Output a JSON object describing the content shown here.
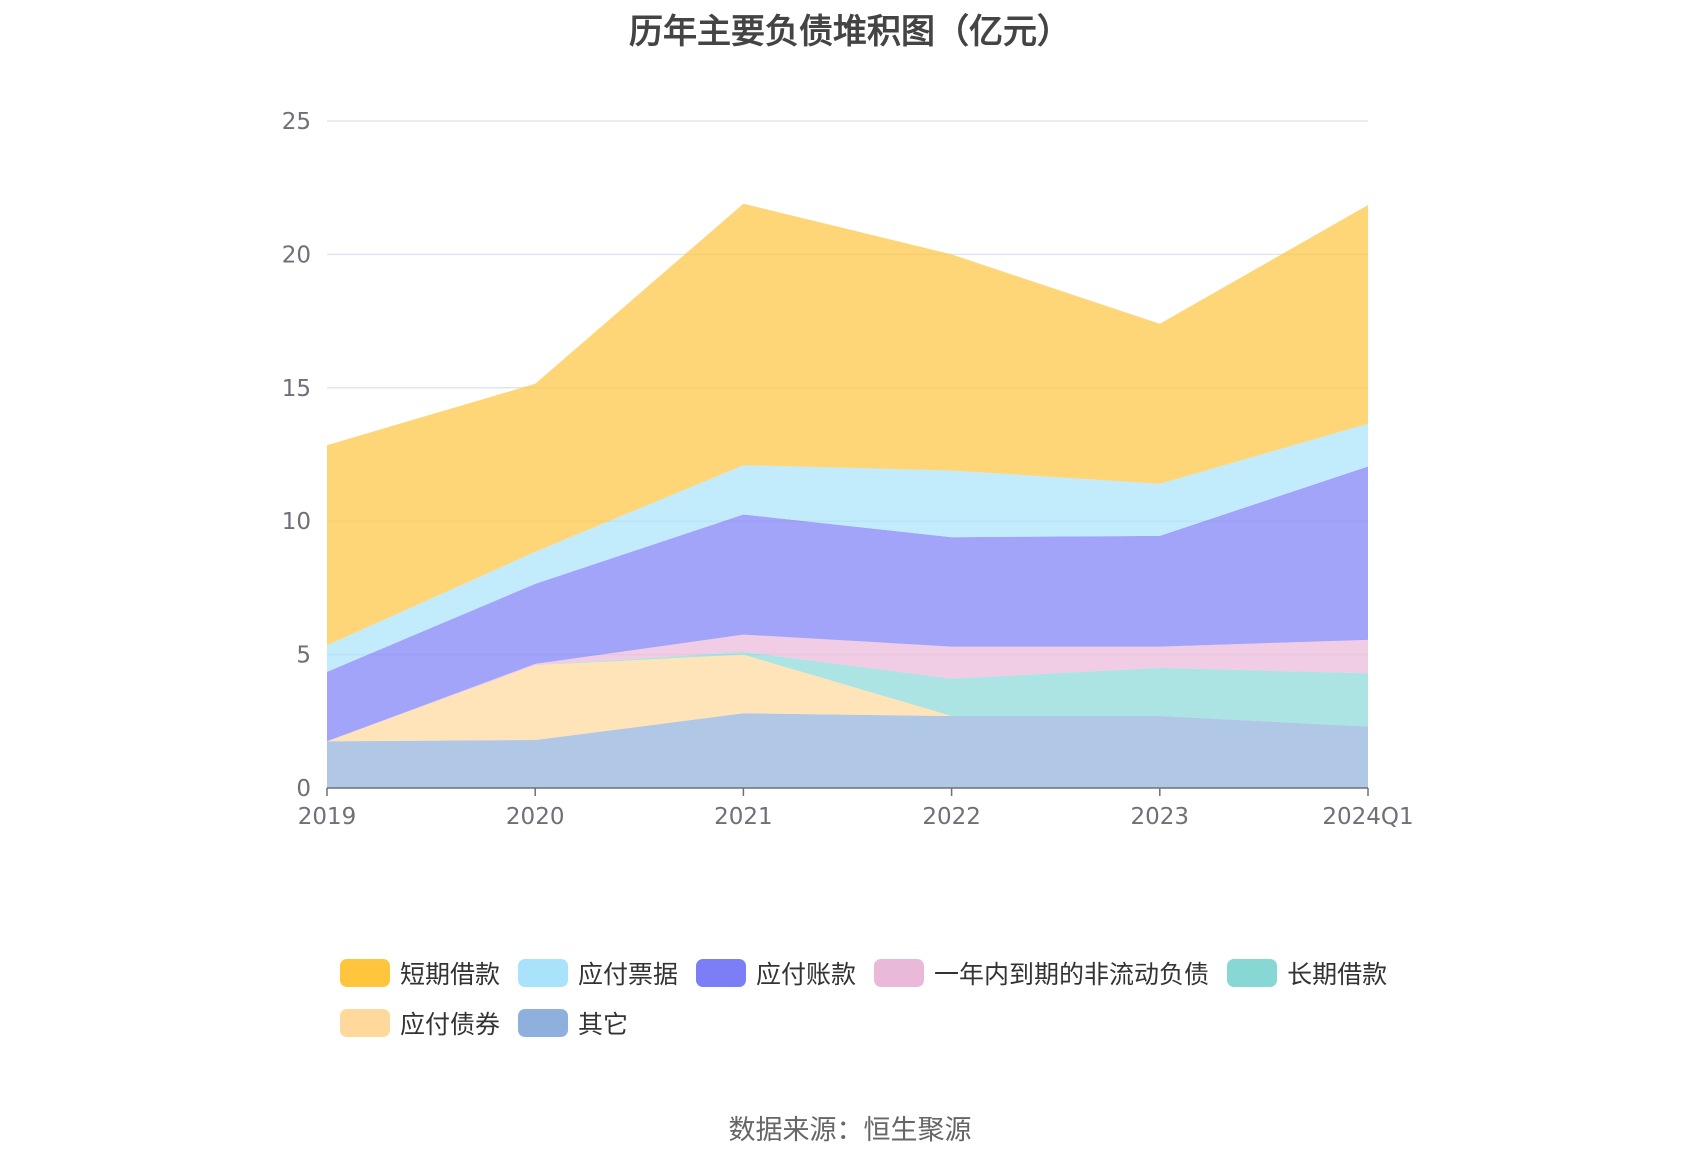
{
  "source": "数据来源：恒生聚源",
  "chart_data": {
    "type": "area",
    "stacked": true,
    "title": "历年主要负债堆积图（亿元）",
    "xlabel": "",
    "ylabel": "",
    "categories": [
      "2019",
      "2020",
      "2021",
      "2022",
      "2023",
      "2024Q1"
    ],
    "ylim": [
      0,
      25
    ],
    "yticks": [
      "0",
      "5",
      "10",
      "15",
      "20",
      "25"
    ],
    "grid": true,
    "legend_position": "bottom",
    "series": [
      {
        "name": "其它",
        "color": "#8fb0dc",
        "values": [
          1.75,
          1.8,
          2.8,
          2.7,
          2.7,
          2.3
        ]
      },
      {
        "name": "应付债券",
        "color": "#ffd89b",
        "values": [
          0,
          2.8,
          2.2,
          0,
          0,
          0
        ]
      },
      {
        "name": "长期借款",
        "color": "#87d8d5",
        "values": [
          0,
          0,
          0.1,
          1.4,
          1.8,
          2.0
        ]
      },
      {
        "name": "一年内到期的非流动负债",
        "color": "#eab8d8",
        "values": [
          0,
          0.05,
          0.65,
          1.2,
          0.8,
          1.25
        ]
      },
      {
        "name": "应付账款",
        "color": "#7b7ef6",
        "values": [
          2.6,
          3.0,
          4.5,
          4.1,
          4.15,
          6.5
        ]
      },
      {
        "name": "应付票据",
        "color": "#a8e2fb",
        "values": [
          1.0,
          1.2,
          1.85,
          2.5,
          1.95,
          1.6
        ]
      },
      {
        "name": "短期借款",
        "color": "#ffc53d",
        "values": [
          7.5,
          6.3,
          9.8,
          8.1,
          6.0,
          8.2
        ]
      }
    ],
    "legend_order": [
      "短期借款",
      "应付票据",
      "应付账款",
      "一年内到期的非流动负债",
      "长期借款",
      "应付债券",
      "其它"
    ]
  }
}
